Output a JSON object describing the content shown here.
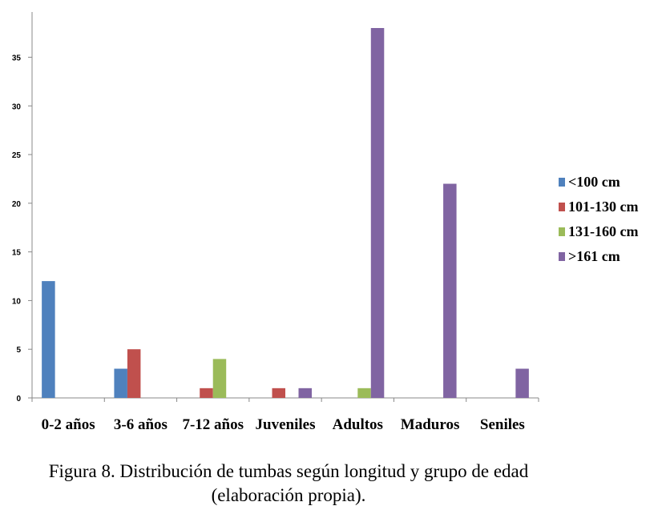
{
  "caption": {
    "line1": "Figura 8. Distribución de tumbas según longitud y grupo de edad",
    "line2": "(elaboración propia)."
  },
  "chart_data": {
    "type": "bar",
    "title": "",
    "xlabel": "",
    "ylabel": "",
    "ylim": [
      0,
      38
    ],
    "yticks": [
      0,
      5,
      10,
      15,
      20,
      25,
      30,
      35
    ],
    "grid": false,
    "legend_position": "right",
    "categories": [
      "0-2 años",
      "3-6 años",
      "7-12 años",
      "Juveniles",
      "Adultos",
      "Maduros",
      "Seniles"
    ],
    "series": [
      {
        "name": "<100 cm",
        "color": "#4f81bd",
        "values": [
          12,
          3,
          0,
          0,
          0,
          0,
          0
        ]
      },
      {
        "name": "101-130 cm",
        "color": "#c0504d",
        "values": [
          0,
          5,
          1,
          1,
          0,
          0,
          0
        ]
      },
      {
        "name": "131-160 cm",
        "color": "#9bbb59",
        "values": [
          0,
          0,
          4,
          0,
          1,
          0,
          0
        ]
      },
      {
        "name": ">161 cm",
        "color": "#8064a2",
        "values": [
          0,
          0,
          0,
          1,
          38,
          22,
          3
        ]
      }
    ]
  }
}
